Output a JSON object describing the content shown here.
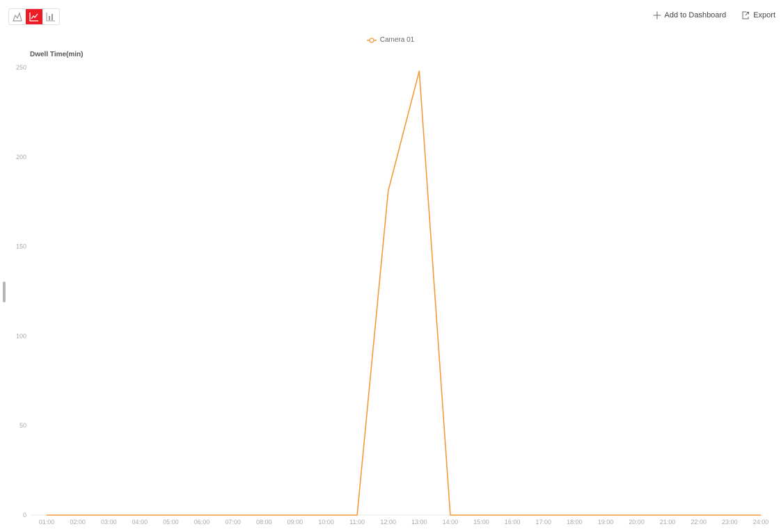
{
  "toolbar": {
    "chart_types": [
      {
        "icon": "area-chart-icon",
        "active": false
      },
      {
        "icon": "line-chart-icon",
        "active": true
      },
      {
        "icon": "bar-chart-icon",
        "active": false
      }
    ],
    "add_to_dashboard_label": "Add to Dashboard",
    "add_icon": "plus-icon",
    "export_label": "Export",
    "export_icon": "export-icon"
  },
  "colors": {
    "accent": "#ee1c25",
    "series": "#f29a38",
    "axis": "#e6e6e6",
    "tick_text": "#a8a8a8"
  },
  "chart_data": {
    "type": "line",
    "ylabel": "Dwell Time(min)",
    "xlabel": "",
    "title": "",
    "categories": [
      "01:00",
      "02:00",
      "03:00",
      "04:00",
      "05:00",
      "06:00",
      "07:00",
      "08:00",
      "09:00",
      "10:00",
      "11:00",
      "12:00",
      "13:00",
      "14:00",
      "15:00",
      "16:00",
      "17:00",
      "18:00",
      "19:00",
      "20:00",
      "21:00",
      "22:00",
      "23:00",
      "24:00"
    ],
    "series": [
      {
        "name": "Camera 01",
        "color": "#f29a38",
        "values": [
          0,
          0,
          0,
          0,
          0,
          0,
          0,
          0,
          0,
          0,
          0,
          181,
          248,
          0,
          0,
          0,
          0,
          0,
          0,
          0,
          0,
          0,
          0,
          0
        ]
      }
    ],
    "ylim": [
      0,
      250
    ],
    "yticks": [
      0,
      50,
      100,
      150,
      200,
      250
    ],
    "grid": false,
    "legend_position": "top-center"
  }
}
